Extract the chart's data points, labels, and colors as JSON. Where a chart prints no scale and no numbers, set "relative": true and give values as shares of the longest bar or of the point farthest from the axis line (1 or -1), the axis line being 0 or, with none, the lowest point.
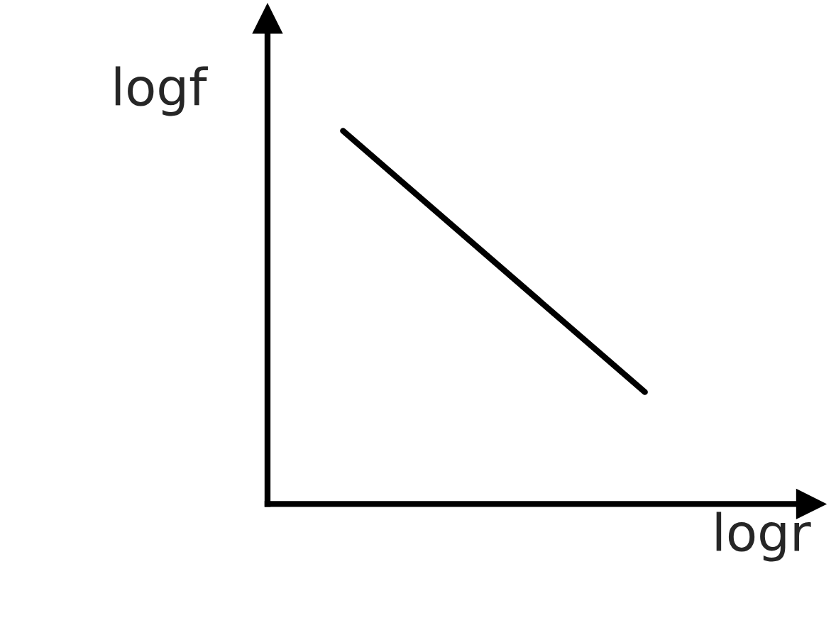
{
  "chart_data": {
    "type": "line",
    "relative": true,
    "xlabel": "logr",
    "ylabel": "logf",
    "categories": [
      null,
      null
    ],
    "series": [
      {
        "color": "#000000",
        "values": [
          1,
          0.3
        ]
      }
    ],
    "marker": "none",
    "line_style": "solid",
    "grid": false,
    "tick_labels": false
  }
}
